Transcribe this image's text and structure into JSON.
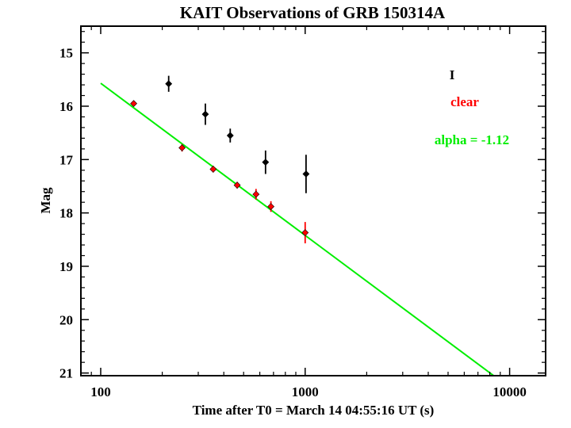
{
  "chart_data": {
    "type": "scatter",
    "title": "KAIT Observations of GRB 150314A",
    "xlabel": "Time after T0 = March 14  04:55:16 UT (s)",
    "ylabel": "Mag",
    "x_scale": "log",
    "xlim": [
      80,
      15000
    ],
    "ylim": [
      21.05,
      14.5
    ],
    "y_inverted": true,
    "x_ticks": [
      {
        "value": 100,
        "label": "100"
      },
      {
        "value": 1000,
        "label": "1000"
      },
      {
        "value": 10000,
        "label": "10000"
      }
    ],
    "y_ticks": [
      {
        "value": 15,
        "label": "15"
      },
      {
        "value": 16,
        "label": "16"
      },
      {
        "value": 17,
        "label": "17"
      },
      {
        "value": 18,
        "label": "18"
      },
      {
        "value": 19,
        "label": "19"
      },
      {
        "value": 20,
        "label": "20"
      },
      {
        "value": 21,
        "label": "21"
      }
    ],
    "series": [
      {
        "name": "I",
        "color": "#000000",
        "marker": "diamond",
        "points": [
          {
            "x": 215,
            "y": 15.58,
            "yerr": 0.15
          },
          {
            "x": 325,
            "y": 16.15,
            "yerr": 0.2
          },
          {
            "x": 430,
            "y": 16.55,
            "yerr": 0.13
          },
          {
            "x": 640,
            "y": 17.05,
            "yerr": 0.22
          },
          {
            "x": 1010,
            "y": 17.27,
            "yerr": 0.36
          }
        ]
      },
      {
        "name": "clear",
        "color": "#ff0000",
        "marker": "diamond",
        "points": [
          {
            "x": 145,
            "y": 15.95,
            "yerr": 0.05
          },
          {
            "x": 250,
            "y": 16.78,
            "yerr": 0.07
          },
          {
            "x": 355,
            "y": 17.18,
            "yerr": 0.06
          },
          {
            "x": 465,
            "y": 17.48,
            "yerr": 0.06
          },
          {
            "x": 575,
            "y": 17.65,
            "yerr": 0.1
          },
          {
            "x": 680,
            "y": 17.88,
            "yerr": 0.1
          },
          {
            "x": 1000,
            "y": 18.37,
            "yerr": 0.2
          }
        ]
      }
    ],
    "fit_line": {
      "label": "alpha = -1.12",
      "color": "#00ee00",
      "alpha": -1.12,
      "x": [
        100,
        8700
      ],
      "y": [
        15.57,
        21.1
      ]
    },
    "legend": {
      "placement": "top-right",
      "entries": [
        {
          "label": "I",
          "color": "#000000"
        },
        {
          "label": "clear",
          "color": "#ff0000"
        },
        {
          "label": "alpha = -1.12",
          "color": "#00ee00"
        }
      ]
    },
    "grid": false
  }
}
